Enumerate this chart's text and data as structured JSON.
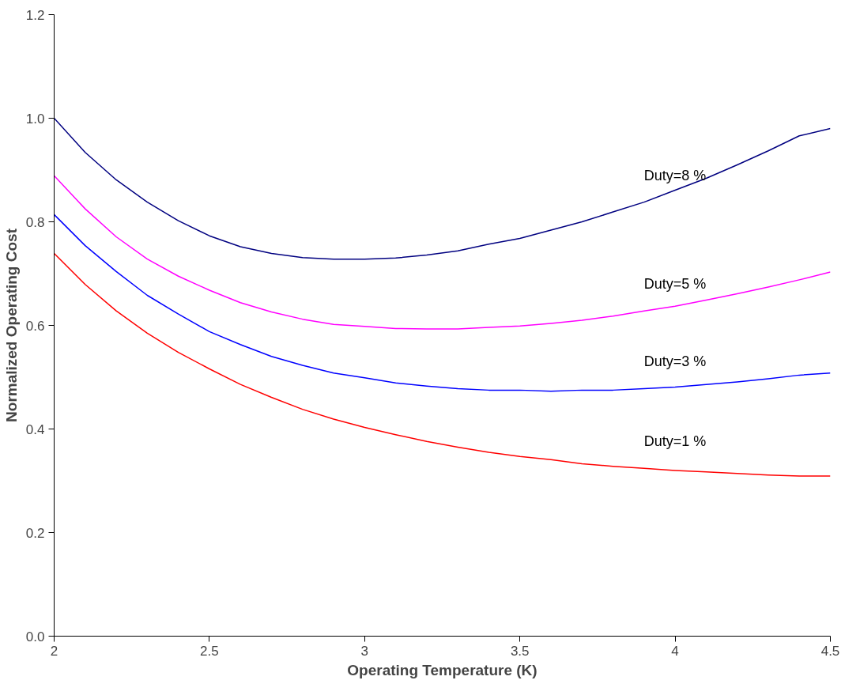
{
  "chart_data": {
    "type": "line",
    "xlabel": "Operating Temperature (K)",
    "ylabel": "Normalized Operating Cost",
    "x": [
      2.0,
      2.1,
      2.2,
      2.3,
      2.4,
      2.5,
      2.6,
      2.7,
      2.8,
      2.9,
      3.0,
      3.1,
      3.2,
      3.3,
      3.4,
      3.5,
      3.6,
      3.7,
      3.8,
      3.9,
      4.0,
      4.1,
      4.2,
      4.3,
      4.4,
      4.5
    ],
    "series": [
      {
        "name": "Duty=8 %",
        "color": "#000080",
        "values": [
          1.0,
          0.934,
          0.881,
          0.838,
          0.802,
          0.773,
          0.752,
          0.739,
          0.731,
          0.728,
          0.728,
          0.73,
          0.736,
          0.744,
          0.757,
          0.768,
          0.784,
          0.8,
          0.819,
          0.838,
          0.861,
          0.884,
          0.91,
          0.937,
          0.966,
          0.98
        ]
      },
      {
        "name": "Duty=5 %",
        "color": "#ff00ff",
        "values": [
          0.889,
          0.825,
          0.771,
          0.728,
          0.695,
          0.668,
          0.644,
          0.626,
          0.612,
          0.602,
          0.598,
          0.594,
          0.593,
          0.593,
          0.596,
          0.599,
          0.604,
          0.61,
          0.618,
          0.628,
          0.637,
          0.649,
          0.661,
          0.674,
          0.688,
          0.703
        ]
      },
      {
        "name": "Duty=3 %",
        "color": "#0000ff",
        "values": [
          0.814,
          0.754,
          0.704,
          0.658,
          0.622,
          0.588,
          0.563,
          0.54,
          0.523,
          0.508,
          0.499,
          0.489,
          0.483,
          0.478,
          0.475,
          0.475,
          0.473,
          0.475,
          0.475,
          0.478,
          0.481,
          0.486,
          0.491,
          0.497,
          0.504,
          0.508
        ]
      },
      {
        "name": "Duty=1 %",
        "color": "#ff0000",
        "values": [
          0.739,
          0.679,
          0.628,
          0.585,
          0.548,
          0.516,
          0.486,
          0.461,
          0.438,
          0.419,
          0.403,
          0.389,
          0.376,
          0.365,
          0.355,
          0.347,
          0.341,
          0.333,
          0.328,
          0.324,
          0.32,
          0.317,
          0.314,
          0.311,
          0.309,
          0.309
        ]
      }
    ],
    "xlim": [
      2,
      4.5
    ],
    "xticks": [
      2,
      2.5,
      3,
      3.5,
      4,
      4.5
    ],
    "ylim": [
      0,
      1.2
    ],
    "yticks": [
      {
        "value": 0,
        "label": "0.0"
      },
      0.2,
      0.4,
      0.6,
      0.8,
      {
        "value": 1,
        "label": "1.0"
      },
      1.2
    ],
    "grid": false,
    "legend": false,
    "marker": "none",
    "line_style": "solid"
  }
}
